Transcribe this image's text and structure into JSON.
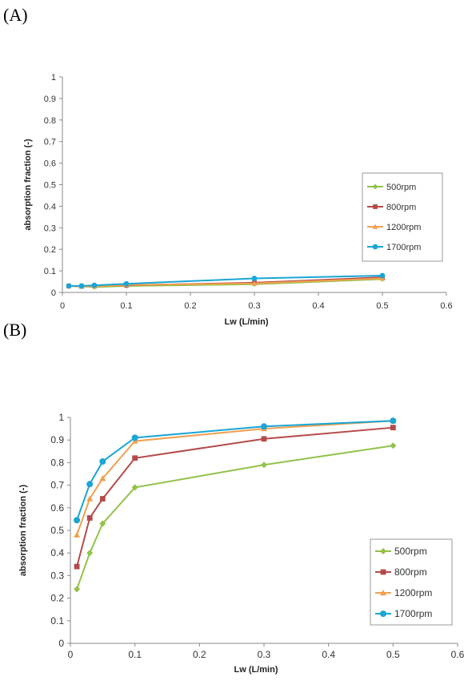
{
  "panels": [
    {
      "label": "(A)"
    },
    {
      "label": "(B)"
    }
  ],
  "chart_data": [
    {
      "type": "line",
      "x": [
        0.01,
        0.03,
        0.05,
        0.1,
        0.3,
        0.5
      ],
      "series": [
        {
          "name": "500rpm",
          "color": "#92c24a",
          "marker": "diamond",
          "values": [
            0.03,
            0.028,
            0.025,
            0.03,
            0.038,
            0.062
          ]
        },
        {
          "name": "800rpm",
          "color": "#b54a4a",
          "marker": "square",
          "values": [
            0.03,
            0.028,
            0.03,
            0.033,
            0.045,
            0.07
          ]
        },
        {
          "name": "1200rpm",
          "color": "#f0a050",
          "marker": "triangle",
          "values": [
            0.03,
            0.028,
            0.028,
            0.035,
            0.042,
            0.065
          ]
        },
        {
          "name": "1700rpm",
          "color": "#1aa5d4",
          "marker": "circle",
          "values": [
            0.03,
            0.03,
            0.033,
            0.04,
            0.065,
            0.078
          ]
        }
      ],
      "xlabel": "Lw (L/min)",
      "ylabel": "absorption fraction (-)",
      "xlim": [
        0,
        0.6
      ],
      "ylim": [
        0,
        1
      ],
      "xticks": [
        "0",
        "0.1",
        "0.2",
        "0.3",
        "0.4",
        "0.5",
        "0.6"
      ],
      "yticks": [
        "0",
        "0.1",
        "0.2",
        "0.3",
        "0.4",
        "0.5",
        "0.6",
        "0.7",
        "0.8",
        "0.9",
        "1"
      ],
      "legend": "right"
    },
    {
      "type": "line",
      "x": [
        0.01,
        0.03,
        0.05,
        0.1,
        0.3,
        0.5
      ],
      "series": [
        {
          "name": "500rpm",
          "color": "#92c24a",
          "marker": "diamond",
          "values": [
            0.24,
            0.4,
            0.53,
            0.69,
            0.79,
            0.875
          ]
        },
        {
          "name": "800rpm",
          "color": "#b54a4a",
          "marker": "square",
          "values": [
            0.34,
            0.555,
            0.64,
            0.82,
            0.905,
            0.955
          ]
        },
        {
          "name": "1200rpm",
          "color": "#f0a050",
          "marker": "triangle",
          "values": [
            0.48,
            0.64,
            0.73,
            0.895,
            0.95,
            0.985
          ]
        },
        {
          "name": "1700rpm",
          "color": "#1aa5d4",
          "marker": "circle",
          "values": [
            0.545,
            0.705,
            0.805,
            0.91,
            0.96,
            0.985
          ]
        }
      ],
      "xlabel": "Lw (L/min)",
      "ylabel": "absorption fraction (-)",
      "xlim": [
        0,
        0.6
      ],
      "ylim": [
        0,
        1
      ],
      "xticks": [
        "0",
        "0.1",
        "0.2",
        "0.3",
        "0.4",
        "0.5",
        "0.6"
      ],
      "yticks": [
        "0",
        "0.1",
        "0.2",
        "0.3",
        "0.4",
        "0.5",
        "0.6",
        "0.7",
        "0.8",
        "0.9",
        "1"
      ],
      "legend": "right"
    }
  ]
}
